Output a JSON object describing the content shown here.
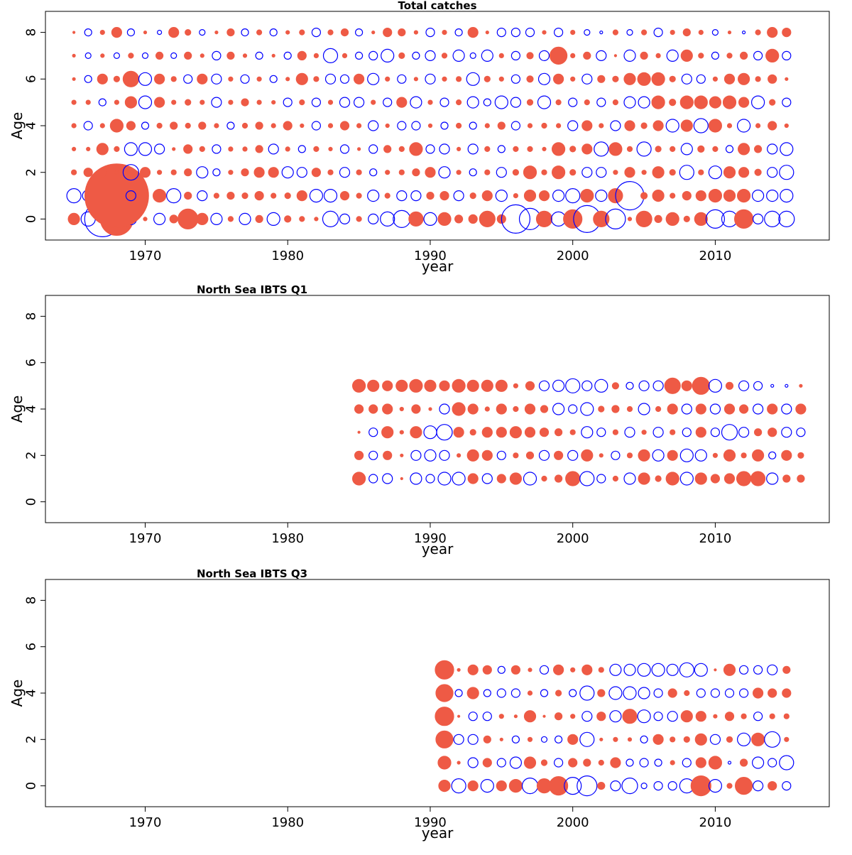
{
  "colors": {
    "positive": "#ee5a45",
    "negative": "#0000ff",
    "frame": "#000000"
  },
  "chart_data": [
    {
      "type": "scatter",
      "title": "Total catches",
      "xlabel": "year",
      "ylabel": "Age",
      "xlim": [
        1963,
        2018
      ],
      "ylim": [
        -0.9,
        8.9
      ],
      "xticks": [
        "1970",
        "1980",
        "1990",
        "2000",
        "2010"
      ],
      "yticks": [
        "0",
        "2",
        "4",
        "6",
        "8"
      ],
      "years": [
        1965,
        2015
      ],
      "ages": [
        0,
        8
      ],
      "rows": {
        "0": "-ccfcpcpffcpcpcpppccpcccfcfpffpccfcfcpcpfpfpfccfcccf",
        "1": "ccfFcpfcfcpfpfppfccfpcpccffcpfcpffccfcfcpfpfffffcccf",
        "2": "pffpcfppfccpfffccfpcpcppffcpcpcpfpfpccpfpfpcpcffpcc",
        "3": "ppfpcccpfpcppfcpcppcpcfpfccpcpcpppfpfcfpcppcppcfpcc",
        "4": "pcpffcpfpfpcpfpfpcpfpcpccpcpcpfcpppcfpcfpfcfcfpcpfp",
        "5": "ppcpfcfpfpcpfppcpcpccpcfcpcpccccpcpcpcpccfpfffffcpcf",
        "6": "pcfpfcfpcfcpcpcpfpccfcpcpcppcppcpcfpcfpfffpccpffpfpc",
        "7": "pcpcpcfcfpcfpcpcfpcpcccpccpcccpcpcfpfcpcfpcfpcpfcfc",
        "8": "pcpfcpcfpcpfcpcppcpfcpffpcpcfpcccpcpccpcpcpffcpcpff"
      },
      "sizes": {
        "0": [
          16,
          20,
          50,
          46,
          16,
          10,
          16,
          22,
          28,
          16,
          16,
          14,
          16,
          20,
          18,
          18,
          14,
          10,
          22,
          14,
          14,
          14,
          20,
          24,
          20,
          18,
          18,
          22,
          12,
          22,
          24,
          40,
          30,
          22,
          20,
          26,
          38,
          44,
          28,
          10,
          22,
          20,
          18,
          16,
          18,
          26,
          22,
          26,
          14,
          22,
          22
        ],
        "1": [
          20,
          16,
          20,
          56,
          14,
          16,
          18,
          20,
          10,
          14,
          14,
          10,
          16,
          12,
          14,
          16,
          14,
          18,
          18,
          12,
          14,
          16,
          14,
          14,
          14,
          10,
          12,
          14,
          16,
          14,
          16,
          12,
          16,
          14,
          16,
          20,
          18,
          16,
          20,
          40,
          18,
          16,
          14,
          12,
          14,
          18,
          16,
          18,
          16,
          16,
          18
        ],
        "2": [
          14,
          12,
          12,
          10,
          22,
          14,
          12,
          14,
          10,
          16,
          10,
          12,
          10,
          14,
          14,
          16,
          14,
          12,
          14,
          14,
          14,
          10,
          12,
          14,
          10,
          14,
          16,
          12,
          10,
          14,
          14,
          16,
          18,
          14,
          18,
          16,
          14,
          14,
          12,
          14,
          12,
          16,
          16,
          20,
          14,
          18,
          16,
          14,
          18,
          14,
          20
        ],
        "3": [
          10,
          10,
          16,
          14,
          18,
          18,
          14,
          8,
          12,
          14,
          12,
          12,
          12,
          10,
          14,
          12,
          10,
          14,
          10,
          12,
          8,
          12,
          10,
          14,
          18,
          12,
          14,
          10,
          14,
          14,
          10,
          14,
          14,
          10,
          18,
          16,
          14,
          20,
          18,
          14,
          20,
          16,
          14,
          16,
          18,
          14,
          10,
          16,
          20,
          14,
          18
        ],
        "4": [
          12,
          12,
          12,
          18,
          12,
          10,
          14,
          10,
          14,
          10,
          12,
          10,
          14,
          10,
          12,
          12,
          10,
          12,
          12,
          12,
          12,
          14,
          10,
          12,
          12,
          10,
          10,
          14,
          10,
          12,
          10,
          12,
          12,
          14,
          12,
          14,
          14,
          12,
          14,
          14,
          16,
          14,
          18,
          16,
          20,
          18,
          12,
          18,
          12,
          12,
          10
        ],
        "5": [
          12,
          12,
          10,
          12,
          16,
          18,
          14,
          12,
          8,
          12,
          14,
          12,
          10,
          12,
          10,
          12,
          14,
          12,
          12,
          14,
          14,
          12,
          12,
          14,
          16,
          12,
          12,
          14,
          16,
          10,
          18,
          14,
          16,
          18,
          14,
          12,
          14,
          12,
          14,
          16,
          16,
          18,
          18,
          18,
          18,
          16,
          18,
          14,
          18,
          16,
          12
        ],
        "6": [
          8,
          10,
          14,
          16,
          22,
          18,
          14,
          14,
          12,
          14,
          14,
          12,
          12,
          12,
          10,
          10,
          16,
          14,
          14,
          12,
          14,
          16,
          12,
          12,
          10,
          14,
          12,
          14,
          18,
          16,
          12,
          12,
          18,
          16,
          14,
          12,
          14,
          10,
          16,
          16,
          18,
          18,
          16,
          14,
          12,
          12,
          14,
          16,
          14,
          12,
          8
        ],
        "7": [
          8,
          8,
          10,
          8,
          14,
          8,
          10,
          8,
          10,
          10,
          12,
          10,
          10,
          10,
          8,
          10,
          12,
          12,
          20,
          12,
          10,
          12,
          18,
          16,
          10,
          14,
          14,
          16,
          8,
          16,
          12,
          12,
          18,
          14,
          24,
          12,
          10,
          14,
          6,
          16,
          10,
          12,
          16,
          16,
          14,
          10,
          14,
          10,
          12,
          18,
          12
        ],
        "8": [
          6,
          10,
          12,
          14,
          10,
          8,
          6,
          14,
          16,
          8,
          8,
          10,
          10,
          14,
          10,
          10,
          14,
          12,
          14,
          10,
          10,
          8,
          12,
          10,
          10,
          12,
          12,
          10,
          14,
          8,
          12,
          12,
          12,
          10,
          12,
          12,
          8,
          4,
          14,
          8,
          14,
          12,
          12,
          10,
          6,
          8,
          8,
          4,
          14,
          14,
          12
        ]
      }
    },
    {
      "type": "scatter",
      "title": "North Sea IBTS Q1",
      "xlabel": "year",
      "ylabel": "Age",
      "xlim": [
        1963,
        2018
      ],
      "ylim": [
        -0.9,
        8.9
      ],
      "xticks": [
        "1970",
        "1980",
        "1990",
        "2000",
        "2010"
      ],
      "yticks": [
        "0",
        "2",
        "4",
        "6",
        "8"
      ],
      "years": [
        1985,
        2016
      ],
      "ages": [
        1,
        5
      ],
      "rows": {
        "1": "fccpccccfcffcpffccpcfpfcfffffcfff",
        "2": "fcfpcccpffcpfcfcfpcpfcfccpfpfcfff",
        "3": "pcfpfccfpffffffpccpcpcpcfcccffccf",
        "4": "fffpfpcffpfpffcccpfpcpfcfcfpcfcfff",
        "5": "fffffffffffffcccccpcccfffcfccccfp"
      },
      "sizes": {
        "1": [
          18,
          12,
          14,
          6,
          16,
          12,
          18,
          18,
          14,
          14,
          12,
          16,
          18,
          14,
          10,
          20,
          20,
          12,
          14,
          16,
          16,
          16,
          18,
          18,
          16,
          12,
          14,
          20,
          20,
          16,
          10,
          10
        ],
        "2": [
          12,
          12,
          12,
          8,
          14,
          16,
          14,
          10,
          16,
          14,
          12,
          14,
          10,
          14,
          12,
          14,
          16,
          10,
          12,
          14,
          16,
          16,
          14,
          18,
          16,
          12,
          16,
          14,
          16,
          10,
          14,
          8
        ],
        "3": [
          6,
          12,
          16,
          10,
          16,
          18,
          22,
          14,
          16,
          14,
          14,
          16,
          14,
          12,
          10,
          14,
          16,
          12,
          14,
          14,
          12,
          14,
          14,
          12,
          14,
          12,
          22,
          14,
          10,
          12,
          14,
          12
        ],
        "4": [
          12,
          12,
          14,
          10,
          12,
          8,
          14,
          18,
          14,
          12,
          14,
          14,
          14,
          10,
          16,
          12,
          18,
          16,
          10,
          14,
          16,
          14,
          14,
          14,
          14,
          14,
          14,
          24,
          14,
          14,
          14,
          14
        ],
        "5": [
          18,
          16,
          14,
          16,
          18,
          16,
          14,
          18,
          16,
          16,
          16,
          6,
          12,
          14,
          16,
          20,
          14,
          18,
          18,
          10,
          14,
          14,
          22,
          14,
          24,
          18,
          10,
          14,
          12,
          4,
          4,
          4
        ]
      }
    },
    {
      "type": "scatter",
      "title": "North Sea IBTS Q3",
      "xlabel": "year",
      "ylabel": "Age",
      "xlim": [
        1963,
        2018
      ],
      "ylim": [
        -0.9,
        8.9
      ],
      "xticks": [
        "1970",
        "1980",
        "1990",
        "2000",
        "2010"
      ],
      "yticks": [
        "0",
        "2",
        "4",
        "6",
        "8"
      ],
      "years": [
        1991,
        2015
      ],
      "ages": [
        0,
        5
      ],
      "rows": {
        "0": "fcfcffcffccfccccccfcpfcfccfcfc",
        "1": "fpcfccffcffpfcccpcffcpccccccccc",
        "2": "fccfpcpccfcpfpcfppfcpcfcffcfpcfcc",
        "3": "fpccppfpfpcfcfcccffpfpcppcfpfp",
        "4": "fcfcccpcfccpccccfpccccfffffcfc",
        "5": "fpfpcfpcfpfpcccccccpfcccpffff"
      },
      "sizes": {
        "0": [
          16,
          20,
          14,
          18,
          14,
          18,
          22,
          20,
          26,
          24,
          28,
          10,
          14,
          22,
          8,
          12,
          12,
          20,
          28,
          18,
          14,
          24,
          14,
          12,
          12,
          22,
          14
        ],
        "1": [
          18,
          8,
          14,
          12,
          12,
          16,
          16,
          8,
          12,
          12,
          10,
          14,
          14,
          10,
          12,
          10,
          12,
          12,
          14,
          18,
          4,
          20,
          16,
          12,
          20
        ],
        "2": [
          24,
          14,
          14,
          10,
          8,
          10,
          12,
          8,
          10,
          14,
          20,
          8,
          6,
          10,
          10,
          14,
          14,
          16,
          16,
          14,
          16,
          18,
          18,
          22,
          6
        ],
        "3": [
          26,
          6,
          12,
          12,
          12,
          8,
          16,
          6,
          10,
          12,
          14,
          12,
          16,
          20,
          18,
          12,
          14,
          16,
          14,
          10,
          12,
          14,
          12,
          14,
          14
        ],
        "4": [
          24,
          10,
          16,
          10,
          12,
          12,
          12,
          10,
          8,
          10,
          20,
          20,
          18,
          18,
          16,
          12,
          12,
          14,
          12,
          12,
          12,
          12,
          14,
          12,
          12
        ],
        "5": [
          26,
          8,
          14,
          24,
          10,
          12,
          10,
          12,
          14,
          12,
          14,
          14,
          16,
          16,
          18,
          18,
          16,
          20,
          18,
          6,
          16,
          12,
          12,
          14,
          20
        ]
      }
    }
  ]
}
